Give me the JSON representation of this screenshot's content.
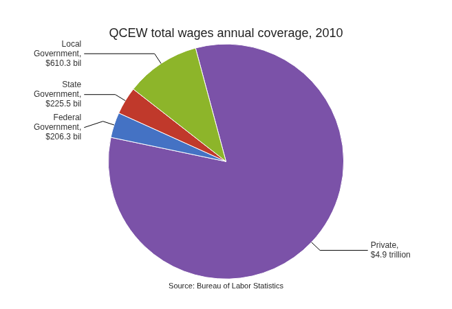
{
  "chart_data": {
    "type": "pie",
    "title": "QCEW total wages annual coverage, 2010",
    "categories": [
      "Private,\n$4.9 trillion",
      "Federal\nGovernment,\n$206.3 bil",
      "State\nGovernment,\n$225.5 bil",
      "Local\nGovernment,\n$610.3 bil"
    ],
    "values": [
      4900.0,
      206.3,
      225.5,
      610.3
    ],
    "colors": [
      "#7B52A8",
      "#4472C4",
      "#C0392B",
      "#8DB52A"
    ],
    "annotations": [
      "Source: Bureau of Labor Statistics"
    ]
  }
}
